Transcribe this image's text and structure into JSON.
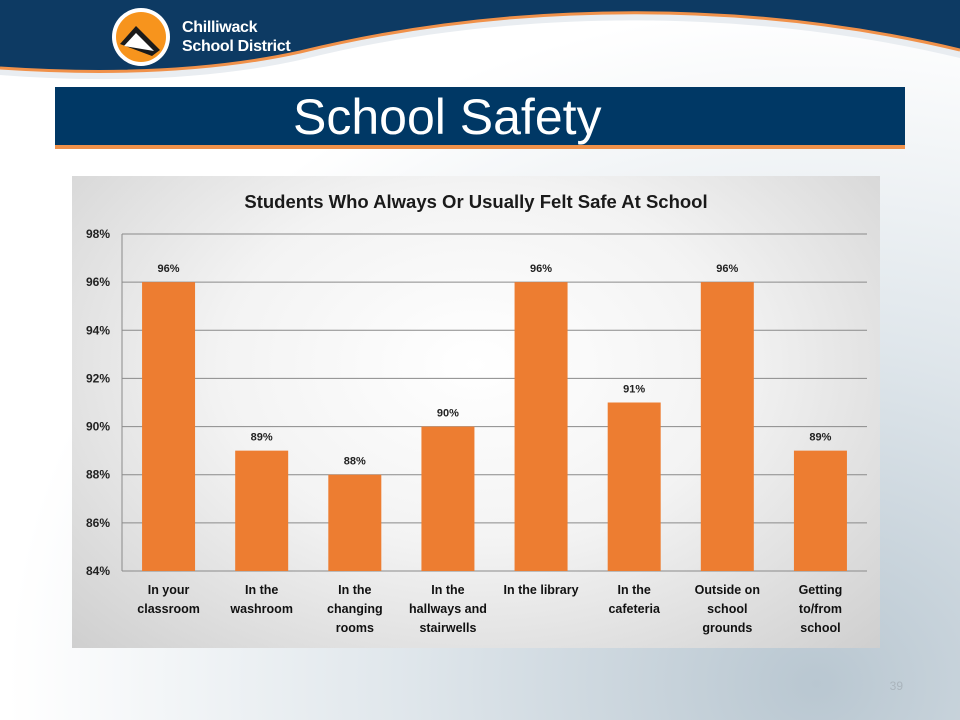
{
  "logo": {
    "line1": "Chilliwack",
    "line2": "School District"
  },
  "slide_title": "School Safety",
  "slide_number": "39",
  "colors": {
    "bar": "#ed7d31",
    "band": "#003865",
    "accent": "#f0914a"
  },
  "chart_data": {
    "type": "bar",
    "title": "Students Who Always Or Usually Felt Safe At School",
    "categories": [
      [
        "In your",
        "classroom"
      ],
      [
        "In the",
        "washroom"
      ],
      [
        "In the",
        "changing",
        "rooms"
      ],
      [
        "In the",
        "hallways and",
        "stairwells"
      ],
      [
        "In the library"
      ],
      [
        "In the",
        "cafeteria"
      ],
      [
        "Outside on",
        "school",
        "grounds"
      ],
      [
        "Getting",
        "to/from",
        "school"
      ]
    ],
    "values": [
      96,
      89,
      88,
      90,
      96,
      91,
      96,
      89
    ],
    "data_labels": [
      "96%",
      "89%",
      "88%",
      "90%",
      "96%",
      "91%",
      "96%",
      "89%"
    ],
    "ylim": [
      84,
      98
    ],
    "y_ticks": [
      "84%",
      "86%",
      "88%",
      "90%",
      "92%",
      "94%",
      "96%",
      "98%"
    ],
    "grid": true,
    "legend": "none"
  }
}
